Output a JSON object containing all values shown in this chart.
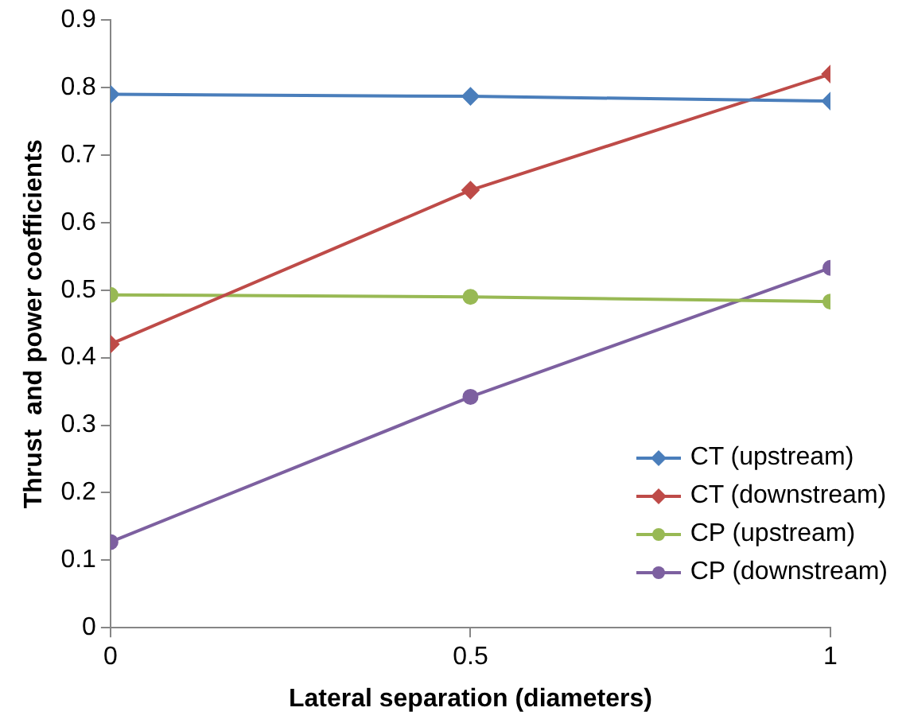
{
  "chart_data": {
    "type": "line",
    "xlabel": "Lateral separation (diameters)",
    "ylabel": "Thrust  and power coefficients",
    "x": [
      0,
      0.5,
      1
    ],
    "xlim": [
      0,
      1
    ],
    "xticks": [
      0,
      0.5,
      1
    ],
    "ylim": [
      0,
      0.9
    ],
    "yticks": [
      0,
      0.1,
      0.2,
      0.3,
      0.4,
      0.5,
      0.6,
      0.7,
      0.8,
      0.9
    ],
    "series": [
      {
        "name": "CT (upstream)",
        "color": "#4a7ebb",
        "values": [
          0.79,
          0.787,
          0.78
        ],
        "marker": "diamond"
      },
      {
        "name": "CT (downstream)",
        "color": "#be4b48",
        "values": [
          0.42,
          0.648,
          0.82
        ],
        "marker": "diamond"
      },
      {
        "name": "CP (upstream)",
        "color": "#98b954",
        "values": [
          0.493,
          0.49,
          0.483
        ],
        "marker": "circle"
      },
      {
        "name": "CP (downstream)",
        "color": "#7d60a0",
        "values": [
          0.127,
          0.342,
          0.533
        ],
        "marker": "circle"
      }
    ],
    "grid": false,
    "legend": "bottom right",
    "line_style": "solid"
  }
}
